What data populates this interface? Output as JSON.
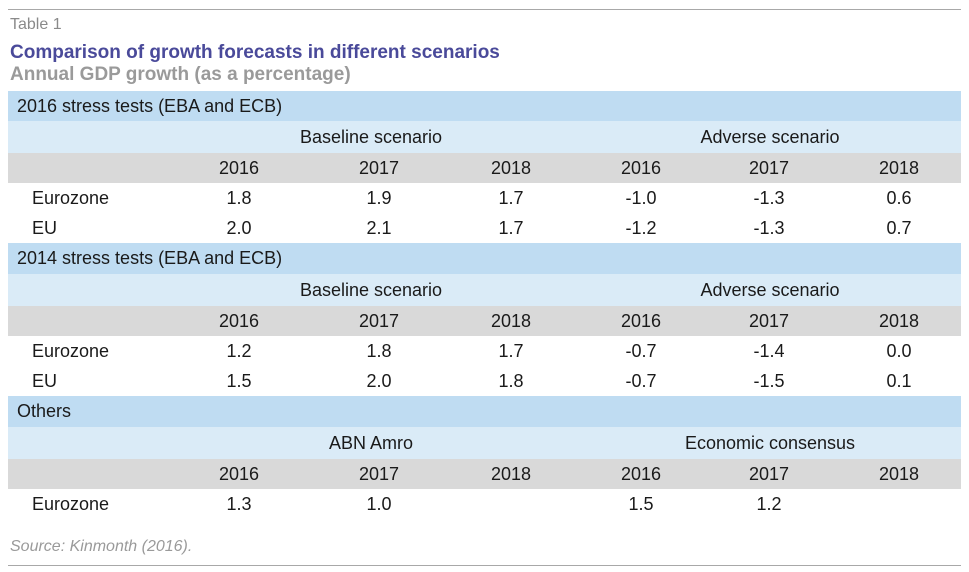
{
  "header": {
    "label": "Table 1",
    "title": "Comparison of growth forecasts in different scenarios",
    "subtitle": "Annual GDP growth (as a percentage)"
  },
  "sections": [
    {
      "title": "2016 stress tests (EBA and ECB)",
      "group_left": "Baseline scenario",
      "group_right": "Adverse scenario",
      "years": [
        "2016",
        "2017",
        "2018",
        "2016",
        "2017",
        "2018"
      ],
      "rows": [
        {
          "name": "Eurozone",
          "values": [
            "1.8",
            "1.9",
            "1.7",
            "-1.0",
            "-1.3",
            "0.6"
          ]
        },
        {
          "name": "EU",
          "values": [
            "2.0",
            "2.1",
            "1.7",
            "-1.2",
            "-1.3",
            "0.7"
          ]
        }
      ]
    },
    {
      "title": "2014 stress tests (EBA and ECB)",
      "group_left": "Baseline scenario",
      "group_right": "Adverse scenario",
      "years": [
        "2016",
        "2017",
        "2018",
        "2016",
        "2017",
        "2018"
      ],
      "rows": [
        {
          "name": "Eurozone",
          "values": [
            "1.2",
            "1.8",
            "1.7",
            "-0.7",
            "-1.4",
            "0.0"
          ]
        },
        {
          "name": "EU",
          "values": [
            "1.5",
            "2.0",
            "1.8",
            "-0.7",
            "-1.5",
            "0.1"
          ]
        }
      ]
    },
    {
      "title": "Others",
      "group_left": "ABN Amro",
      "group_right": "Economic consensus",
      "years": [
        "2016",
        "2017",
        "2018",
        "2016",
        "2017",
        "2018"
      ],
      "rows": [
        {
          "name": "Eurozone",
          "values": [
            "1.3",
            "1.0",
            "",
            "1.5",
            "1.2",
            ""
          ]
        }
      ]
    }
  ],
  "source": "Source: Kinmonth (2016).",
  "colors": {
    "title": "#4a4a9a",
    "subtitle": "#9a9a9a",
    "section_band": "#bfdcf2",
    "scenario_band": "#daebf7",
    "year_band": "#d9d9d9"
  }
}
